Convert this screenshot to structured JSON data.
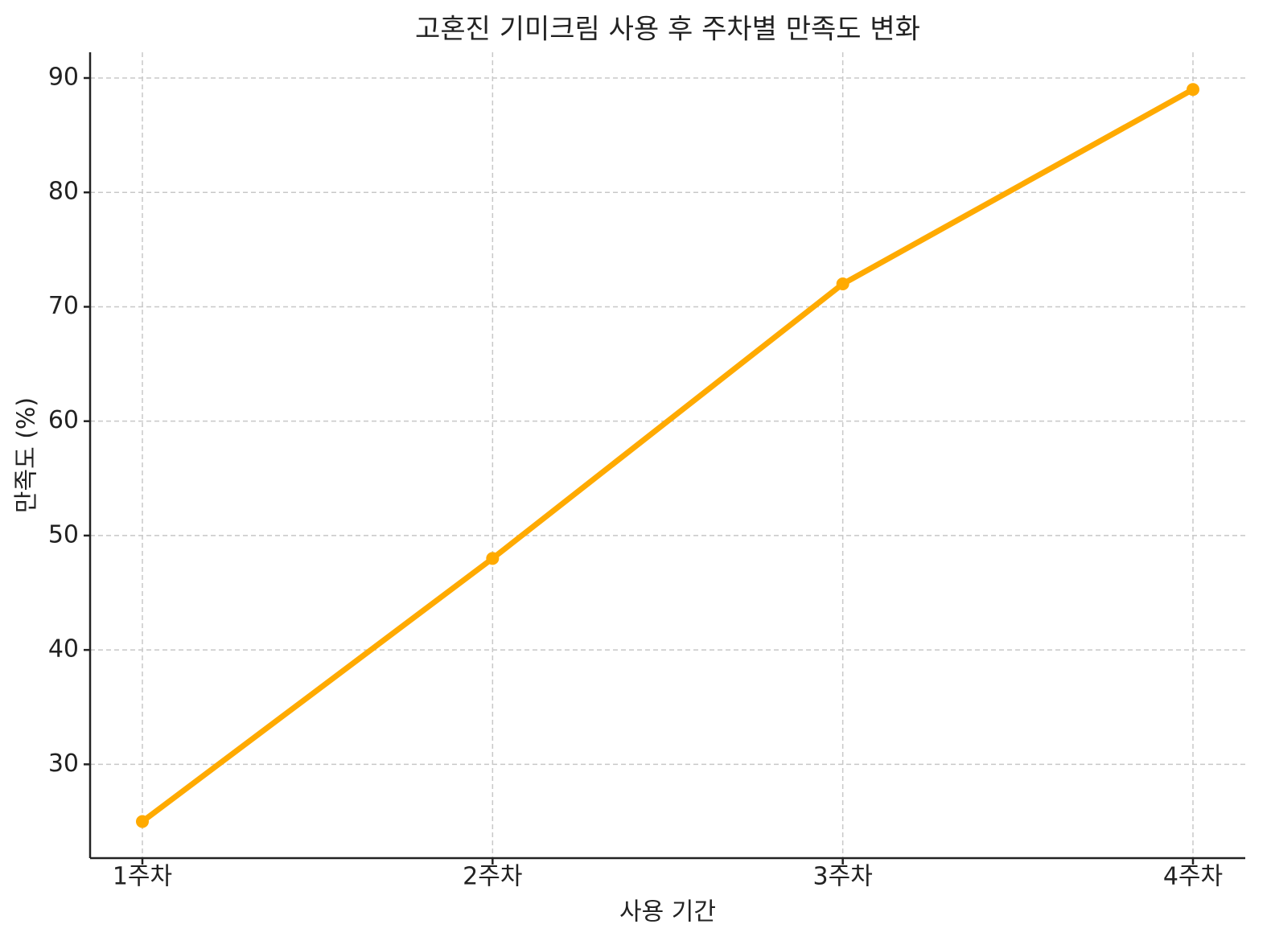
{
  "chart_data": {
    "type": "line",
    "title": "고혼진 기미크림 사용 후 주차별 만족도 변화",
    "x_label": "사용 기간",
    "y_label": "만족도 (%)",
    "categories": [
      "1주차",
      "2주차",
      "3주차",
      "4주차"
    ],
    "series": [
      {
        "name": "만족도",
        "color": "#ffaa00",
        "values": [
          25,
          48,
          72,
          89
        ]
      }
    ],
    "ylim": [
      21.8,
      92.25
    ],
    "yticks": [
      30,
      40,
      50,
      60,
      70,
      80,
      90
    ],
    "grid": true
  }
}
